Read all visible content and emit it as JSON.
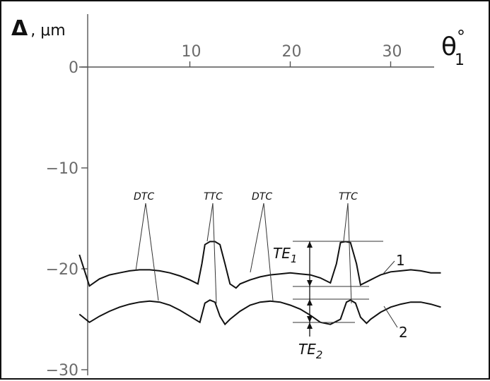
{
  "chart_data": {
    "type": "line",
    "title": "",
    "ylabel": "Δ, μm",
    "xlabel_main": "θ",
    "xlabel_sub": "1",
    "xlabel_sup": "°",
    "xlim": [
      -1,
      35
    ],
    "ylim": [
      -30,
      0
    ],
    "x_ticks": [
      10,
      20,
      30
    ],
    "y_ticks": [
      0,
      -10,
      -20,
      -30
    ],
    "x_tick_labels": [
      "10",
      "20",
      "30"
    ],
    "y_tick_labels": [
      "0",
      "−10",
      "−20",
      "−30"
    ],
    "grid": false,
    "series": [
      {
        "name": "1",
        "x": [
          -1,
          0,
          1,
          2,
          3,
          4,
          5,
          6,
          7,
          8,
          9,
          10,
          10.8,
          11.2,
          11.5,
          12,
          12.5,
          13,
          13.5,
          14,
          14.6,
          15,
          16,
          17,
          18,
          19,
          20,
          21,
          22,
          23,
          24,
          24.6,
          25,
          25.5,
          26,
          26.6,
          27,
          28,
          28.6,
          29,
          30,
          31,
          32,
          33,
          34,
          35
        ],
        "y": [
          -18.6,
          -21.7,
          -21.0,
          -20.6,
          -20.4,
          -20.2,
          -20.1,
          -20.1,
          -20.2,
          -20.4,
          -20.7,
          -21.1,
          -21.5,
          -19.5,
          -17.6,
          -17.3,
          -17.3,
          -17.6,
          -19.5,
          -21.5,
          -21.9,
          -21.5,
          -21.1,
          -20.8,
          -20.6,
          -20.5,
          -20.4,
          -20.5,
          -20.6,
          -20.9,
          -21.4,
          -19.5,
          -17.4,
          -17.3,
          -17.4,
          -19.5,
          -21.6,
          -21.1,
          -20.8,
          -20.6,
          -20.3,
          -20.2,
          -20.1,
          -20.2,
          -20.4,
          -20.4
        ]
      },
      {
        "name": "2",
        "x": [
          -1,
          0,
          1,
          2,
          3,
          4,
          5,
          6,
          7,
          8,
          9,
          10,
          11,
          11.5,
          12,
          12.5,
          13,
          13.5,
          14,
          15,
          16,
          17,
          18,
          19,
          20,
          21,
          22,
          23,
          24,
          25,
          25.6,
          26,
          26.5,
          27,
          27.6,
          28,
          29,
          30,
          31,
          32,
          33,
          34,
          35
        ],
        "y": [
          -24.5,
          -25.3,
          -24.7,
          -24.2,
          -23.8,
          -23.5,
          -23.3,
          -23.2,
          -23.3,
          -23.6,
          -24.1,
          -24.7,
          -25.3,
          -23.4,
          -23.1,
          -23.3,
          -24.7,
          -25.5,
          -25.0,
          -24.2,
          -23.6,
          -23.3,
          -23.2,
          -23.3,
          -23.6,
          -24.0,
          -24.6,
          -25.3,
          -25.5,
          -25.0,
          -23.3,
          -23.1,
          -23.4,
          -24.8,
          -25.4,
          -25.0,
          -24.3,
          -23.8,
          -23.5,
          -23.3,
          -23.3,
          -23.5,
          -23.8
        ]
      }
    ],
    "annotations": {
      "dtc": "DTC",
      "ttc": "TTC",
      "te1_main": "TE",
      "te1_sub": "1",
      "te2_main": "TE",
      "te2_sub": "2",
      "curve1_label": "1",
      "curve2_label": "2"
    }
  }
}
